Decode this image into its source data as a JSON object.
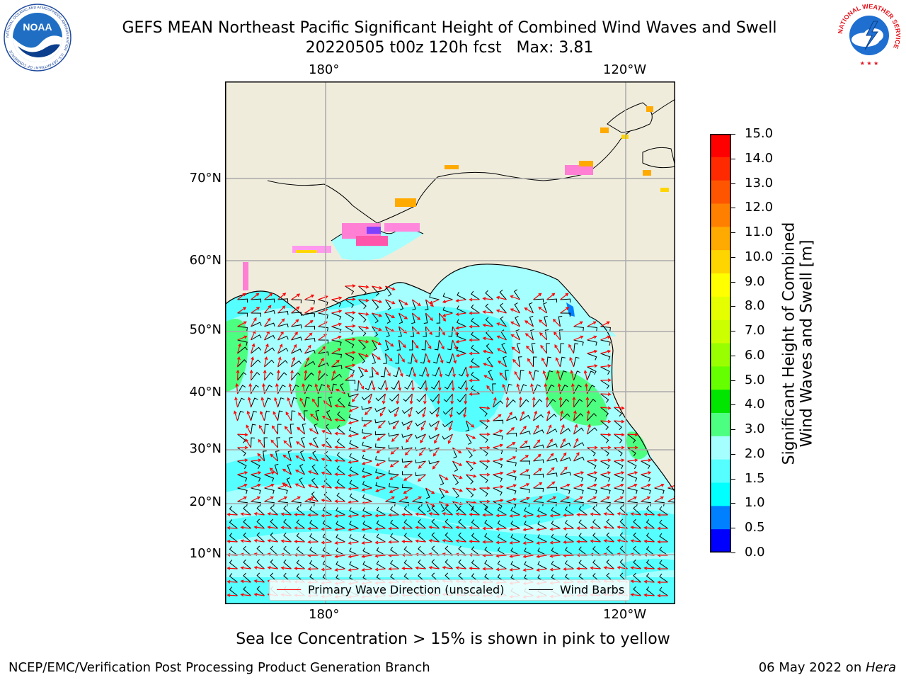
{
  "title": {
    "line1": "GEFS MEAN Northeast Pacific Significant Height of Combined Wind Waves and Swell",
    "line2": "20220505 t00z 120h fcst   Max: 3.81"
  },
  "logos": {
    "left": "NOAA",
    "left_ring_text": "NATIONAL OCEANIC AND ATMOSPHERIC ADMINISTRATION · U.S. DEPARTMENT OF COMMERCE",
    "right_ring_text": "NATIONAL WEATHER SERVICE"
  },
  "map": {
    "lon_labels": [
      "180°",
      "120°W"
    ],
    "lat_labels": [
      "70°N",
      "60°N",
      "50°N",
      "40°N",
      "30°N",
      "20°N",
      "10°N"
    ],
    "land_color": "#efecdc",
    "ocean_shading_note": "significant wave height field"
  },
  "colorbar": {
    "ticks": [
      "15.0",
      "14.0",
      "13.0",
      "12.0",
      "11.0",
      "10.0",
      "9.0",
      "8.0",
      "7.0",
      "6.0",
      "5.0",
      "4.0",
      "3.0",
      "2.0",
      "1.5",
      "1.0",
      "0.5",
      "0.0"
    ],
    "colors": [
      "#ff0000",
      "#ff2a00",
      "#ff5500",
      "#ff8000",
      "#ffaa00",
      "#ffd500",
      "#ffff00",
      "#e6ff00",
      "#ccff00",
      "#99ff00",
      "#66ff00",
      "#00e600",
      "#4dff80",
      "#a5ffff",
      "#55ffff",
      "#00ffff",
      "#0080ff",
      "#0000ff"
    ],
    "label": "Significant Height of Combined\nWind Waves and Swell [m]"
  },
  "legend": {
    "wave_label": "Primary Wave Direction (unscaled)",
    "wind_label": "Wind Barbs",
    "wave_color": "#ff0000",
    "wind_color": "#000000"
  },
  "sea_ice_note": "Sea Ice Concentration > 15% is shown in pink to yellow",
  "footer": {
    "left": "NCEP/EMC/Verification Post Processing Product Generation Branch",
    "date": "06 May 2022 on ",
    "host": "Hera"
  }
}
